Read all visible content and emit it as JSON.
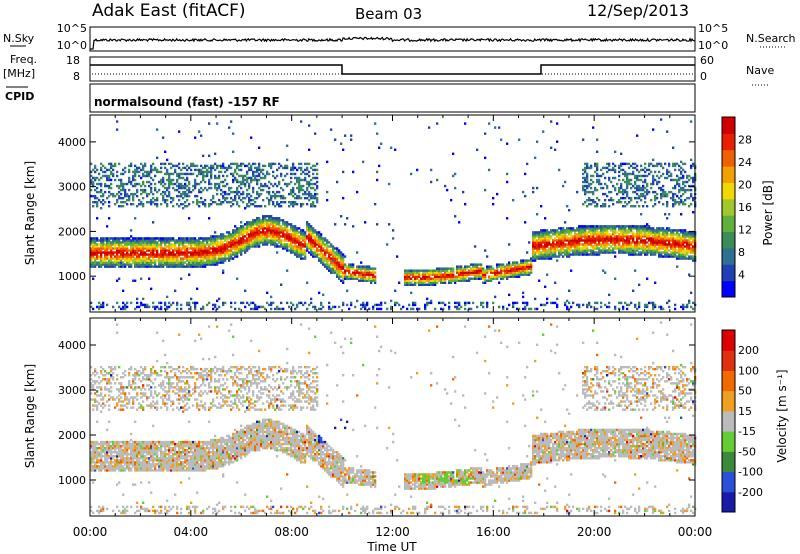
{
  "header": {
    "station": "Adak East (fitACF)",
    "beam": "Beam 03",
    "date": "12/Sep/2013"
  },
  "status_panels": {
    "nsky_label": "N.Sky",
    "nsky_ticks": [
      "10^5",
      "10^0"
    ],
    "nsearch_label": "N.Search",
    "nsearch_ticks": [
      "10^5",
      "10^0"
    ],
    "freq_label": "Freq.",
    "freq_unit": "[MHz]",
    "freq_ticks": [
      "18",
      "8"
    ],
    "nave_label": "Nave",
    "nave_ticks": [
      "60",
      "0"
    ],
    "cpid_label": "CPID",
    "cpid_text": "normalsound (fast) -157 RF"
  },
  "chart_data": [
    {
      "type": "heatmap",
      "name": "power-panel",
      "ylabel": "Slant Range [km]",
      "xlabel": "",
      "ylim": [
        200,
        4600
      ],
      "yticks": [
        "1000",
        "2000",
        "3000",
        "4000"
      ],
      "xlim_hours": [
        0,
        24
      ],
      "colorbar_label": "Power [dB]",
      "colorbar_ticks": [
        "28",
        "24",
        "20",
        "16",
        "12",
        "8",
        "4"
      ],
      "colorbar_colors": [
        "#0000ff",
        "#1e40b0",
        "#2f6f8f",
        "#3c8c5a",
        "#5fb03c",
        "#a0c82c",
        "#f0d800",
        "#f3a000",
        "#ef6000",
        "#e82000",
        "#d00000"
      ]
    },
    {
      "type": "heatmap",
      "name": "velocity-panel",
      "ylabel": "Slant Range [km]",
      "xlabel": "Time UT",
      "ylim": [
        200,
        4600
      ],
      "yticks": [
        "1000",
        "2000",
        "3000",
        "4000"
      ],
      "xticks": [
        "00:00",
        "04:00",
        "08:00",
        "12:00",
        "16:00",
        "20:00",
        "00:00"
      ],
      "xlim_hours": [
        0,
        24
      ],
      "colorbar_label": "Velocity [m s⁻¹]",
      "colorbar_ticks": [
        "200",
        "100",
        "50",
        "15",
        "-15",
        "-50",
        "-100",
        "-200"
      ],
      "colorbar_colors": [
        "#1a1aa8",
        "#2a4fd8",
        "#3a8a3a",
        "#66cc33",
        "#bbbbbb",
        "#f0a020",
        "#f06a00",
        "#e03010",
        "#dd0000"
      ]
    }
  ]
}
